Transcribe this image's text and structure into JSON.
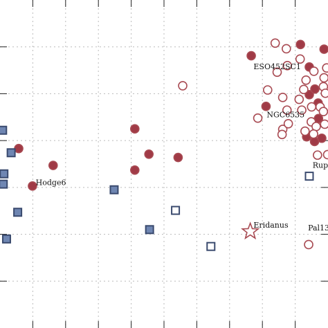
{
  "chart_data": {
    "type": "scatter",
    "title": "",
    "xlabel": "",
    "ylabel": "",
    "grid": true,
    "grid_style": "dotted",
    "ticks_direction": "in",
    "x_tick_count_visible": 10,
    "y_tick_count_visible": 6,
    "xlim": [
      0,
      10
    ],
    "ylim": [
      0,
      7
    ],
    "colors": {
      "red": "#a84a52",
      "red_fill": "#a03a46",
      "blue": "#3a4a6e",
      "blue_fill": "#6f86b2",
      "grid": "#bbbbbb"
    },
    "series": [
      {
        "marker": "circle-filled",
        "points": [
          [
            4.11,
            4.25
          ],
          [
            0.57,
            3.83
          ],
          [
            1.62,
            3.47
          ],
          [
            0.99,
            3.03
          ],
          [
            4.54,
            3.71
          ],
          [
            4.11,
            3.37
          ],
          [
            5.43,
            3.64
          ],
          [
            7.66,
            5.81
          ],
          [
            8.11,
            4.73
          ],
          [
            9.16,
            6.05
          ],
          [
            9.88,
            5.95
          ],
          [
            9.43,
            5.57
          ],
          [
            9.43,
            4.98
          ],
          [
            9.71,
            4.47
          ],
          [
            9.35,
            4.08
          ],
          [
            9.81,
            4.05
          ],
          [
            9.59,
            3.98
          ],
          [
            9.7,
            4.8
          ],
          [
            9.6,
            5.1
          ]
        ]
      },
      {
        "marker": "circle-open",
        "points": [
          [
            5.57,
            5.17
          ],
          [
            8.39,
            6.08
          ],
          [
            8.73,
            5.96
          ],
          [
            8.76,
            5.6
          ],
          [
            8.45,
            5.46
          ],
          [
            9.15,
            5.74
          ],
          [
            9.33,
            5.29
          ],
          [
            9.57,
            5.48
          ],
          [
            9.88,
            5.34
          ],
          [
            9.26,
            5.09
          ],
          [
            9.12,
            4.88
          ],
          [
            8.62,
            4.92
          ],
          [
            8.75,
            4.65
          ],
          [
            9.2,
            4.65
          ],
          [
            9.5,
            4.72
          ],
          [
            9.76,
            4.72
          ],
          [
            8.16,
            5.08
          ],
          [
            9.49,
            4.4
          ],
          [
            9.9,
            4.35
          ],
          [
            9.3,
            4.2
          ],
          [
            9.64,
            4.3
          ],
          [
            9.56,
            4.14
          ],
          [
            8.62,
            4.24
          ],
          [
            8.6,
            4.13
          ],
          [
            7.86,
            4.48
          ],
          [
            8.79,
            4.36
          ],
          [
            9.86,
            5.15
          ],
          [
            9.96,
            5.55
          ],
          [
            9.68,
            3.69
          ],
          [
            9.41,
            1.78
          ],
          [
            9.86,
            4.62
          ],
          [
            9.92,
            5.01
          ],
          [
            9.99,
            3.7
          ]
        ]
      },
      {
        "marker": "square-filled",
        "points": [
          [
            0.08,
            4.22
          ],
          [
            0.34,
            3.74
          ],
          [
            0.12,
            3.29
          ],
          [
            0.1,
            3.07
          ],
          [
            3.48,
            2.95
          ],
          [
            0.54,
            2.47
          ],
          [
            0.2,
            1.9
          ],
          [
            4.56,
            2.1
          ]
        ]
      },
      {
        "marker": "square-open",
        "points": [
          [
            9.43,
            3.24
          ],
          [
            5.35,
            2.51
          ],
          [
            6.43,
            1.74
          ]
        ]
      },
      {
        "marker": "star-open",
        "points": [
          [
            7.63,
            2.06
          ]
        ]
      }
    ],
    "annotations": [
      {
        "text": "ESO452SC1",
        "x": 7.73,
        "y": 5.52
      },
      {
        "text": "NGC6535",
        "x": 8.13,
        "y": 4.5
      },
      {
        "text": "Hodge6",
        "x": 1.09,
        "y": 3.05
      },
      {
        "text": "Rup",
        "x": 9.53,
        "y": 3.42
      },
      {
        "text": "Eridanus",
        "x": 7.73,
        "y": 2.14
      },
      {
        "text": "Pal13",
        "x": 9.39,
        "y": 2.08
      }
    ]
  }
}
